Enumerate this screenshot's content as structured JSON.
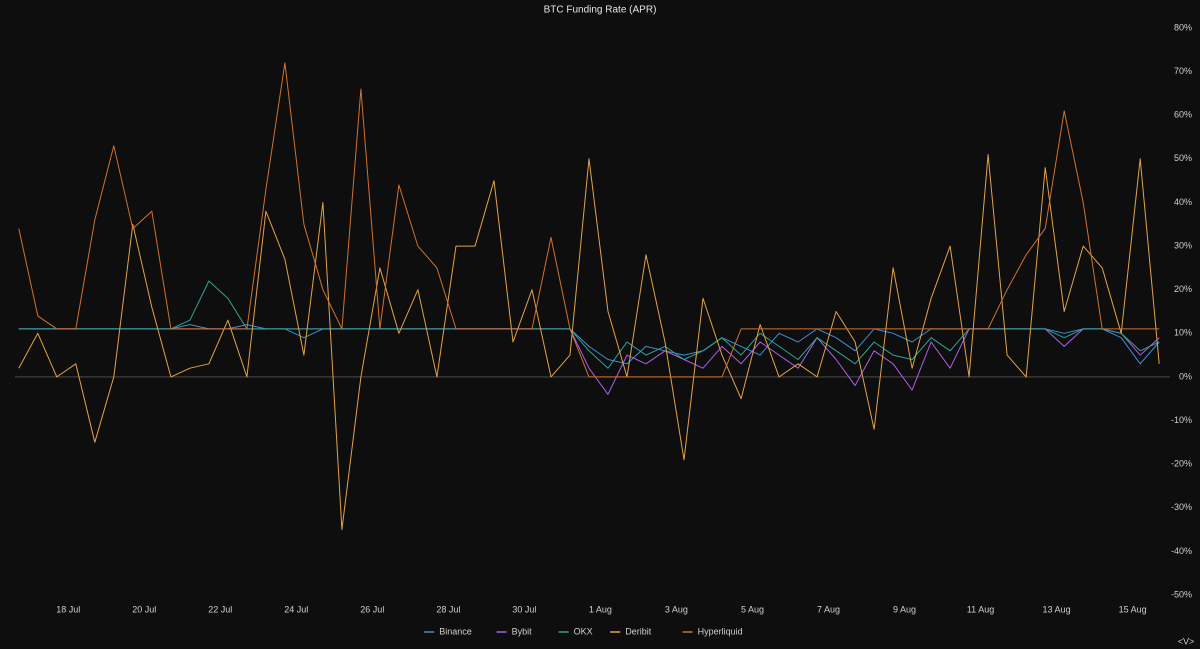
{
  "chart_data": {
    "type": "line",
    "title": "BTC Funding Rate (APR)",
    "corner_mark": "<V>",
    "x": [
      16.7,
      17.2,
      17.7,
      18.2,
      18.7,
      19.2,
      19.7,
      20.2,
      20.7,
      21.2,
      21.7,
      22.2,
      22.7,
      23.2,
      23.7,
      24.2,
      24.7,
      25.2,
      25.7,
      26.2,
      26.7,
      27.2,
      27.7,
      28.2,
      28.7,
      29.2,
      29.7,
      30.2,
      30.7,
      31.2,
      31.7,
      32.2,
      32.7,
      33.2,
      33.7,
      34.2,
      34.7,
      35.2,
      35.7,
      36.2,
      36.7,
      37.2,
      37.7,
      38.2,
      38.7,
      39.2,
      39.7,
      40.2,
      40.7,
      41.2,
      41.7,
      42.2,
      42.7,
      43.2,
      43.7,
      44.2,
      44.7,
      45.2,
      45.7,
      46.2,
      46.7
    ],
    "xlim": [
      16.6,
      46.8
    ],
    "xticks": [
      {
        "value": 18,
        "label": "18 Jul"
      },
      {
        "value": 20,
        "label": "20 Jul"
      },
      {
        "value": 22,
        "label": "22 Jul"
      },
      {
        "value": 24,
        "label": "24 Jul"
      },
      {
        "value": 26,
        "label": "26 Jul"
      },
      {
        "value": 28,
        "label": "28 Jul"
      },
      {
        "value": 30,
        "label": "30 Jul"
      },
      {
        "value": 32,
        "label": "1 Aug"
      },
      {
        "value": 34,
        "label": "3 Aug"
      },
      {
        "value": 36,
        "label": "5 Aug"
      },
      {
        "value": 38,
        "label": "7 Aug"
      },
      {
        "value": 40,
        "label": "9 Aug"
      },
      {
        "value": 42,
        "label": "11 Aug"
      },
      {
        "value": 44,
        "label": "13 Aug"
      },
      {
        "value": 46,
        "label": "15 Aug"
      }
    ],
    "ylim": [
      -50,
      80
    ],
    "yticks": [
      {
        "value": 80,
        "label": "80%"
      },
      {
        "value": 70,
        "label": "70%"
      },
      {
        "value": 60,
        "label": "60%"
      },
      {
        "value": 50,
        "label": "50%"
      },
      {
        "value": 40,
        "label": "40%"
      },
      {
        "value": 30,
        "label": "30%"
      },
      {
        "value": 20,
        "label": "20%"
      },
      {
        "value": 10,
        "label": "10%"
      },
      {
        "value": 0,
        "label": "0%"
      },
      {
        "value": -10,
        "label": "-10%"
      },
      {
        "value": -20,
        "label": "-20%"
      },
      {
        "value": -30,
        "label": "-30%"
      },
      {
        "value": -40,
        "label": "-40%"
      },
      {
        "value": -50,
        "label": "-50%"
      }
    ],
    "legend": "bottom",
    "series": [
      {
        "name": "Binance",
        "color": "#3d8fd6",
        "values": [
          11,
          11,
          11,
          11,
          11,
          11,
          11,
          11,
          11,
          12,
          11,
          11,
          12,
          11,
          11,
          9,
          11,
          11,
          11,
          11,
          11,
          11,
          11,
          11,
          11,
          11,
          11,
          11,
          11,
          11,
          7,
          4,
          3,
          7,
          6,
          5,
          6,
          9,
          7,
          5,
          10,
          8,
          11,
          9,
          6,
          11,
          10,
          8,
          11,
          11,
          11,
          11,
          11,
          11,
          11,
          10,
          11,
          11,
          9,
          3,
          8
        ]
      },
      {
        "name": "Bybit",
        "color": "#b05ee8",
        "values": [
          11,
          11,
          11,
          11,
          11,
          11,
          11,
          11,
          11,
          11,
          11,
          11,
          11,
          11,
          11,
          11,
          11,
          11,
          11,
          11,
          11,
          11,
          11,
          11,
          11,
          11,
          11,
          11,
          11,
          11,
          2,
          -4,
          5,
          3,
          6,
          4,
          2,
          7,
          3,
          8,
          5,
          2,
          9,
          4,
          -2,
          6,
          3,
          -3,
          8,
          2,
          11,
          11,
          11,
          11,
          11,
          7,
          11,
          11,
          10,
          5,
          9
        ]
      },
      {
        "name": "OKX",
        "color": "#2fa596",
        "values": [
          11,
          11,
          11,
          11,
          11,
          11,
          11,
          11,
          11,
          13,
          22,
          18,
          11,
          11,
          11,
          11,
          11,
          11,
          11,
          11,
          11,
          11,
          11,
          11,
          11,
          11,
          11,
          11,
          11,
          11,
          6,
          2,
          8,
          5,
          7,
          4,
          6,
          9,
          5,
          10,
          7,
          4,
          9,
          6,
          3,
          8,
          5,
          4,
          9,
          6,
          11,
          11,
          11,
          11,
          11,
          9,
          11,
          11,
          10,
          6,
          8
        ]
      },
      {
        "name": "Deribit",
        "color": "#e3a34a",
        "values": [
          2,
          10,
          0,
          3,
          -15,
          0,
          35,
          16,
          0,
          2,
          3,
          13,
          0,
          38,
          27,
          5,
          40,
          -35,
          0,
          25,
          10,
          20,
          0,
          30,
          30,
          45,
          8,
          20,
          0,
          5,
          50,
          15,
          0,
          28,
          8,
          -19,
          18,
          5,
          -5,
          12,
          0,
          3,
          0,
          15,
          8,
          -12,
          25,
          2,
          18,
          30,
          0,
          51,
          5,
          0,
          48,
          15,
          30,
          25,
          10,
          50,
          3
        ]
      },
      {
        "name": "Hyperliquid",
        "color": "#d2712e",
        "values": [
          34,
          14,
          11,
          11,
          36,
          53,
          34,
          38,
          11,
          11,
          11,
          11,
          11,
          43,
          72,
          35,
          20,
          11,
          66,
          11,
          44,
          30,
          25,
          11,
          11,
          11,
          11,
          11,
          32,
          11,
          0,
          0,
          0,
          0,
          0,
          0,
          0,
          0,
          11,
          11,
          11,
          11,
          11,
          11,
          11,
          11,
          11,
          11,
          11,
          11,
          11,
          11,
          20,
          28,
          34,
          61,
          40,
          11,
          11,
          11,
          11
        ]
      }
    ]
  }
}
